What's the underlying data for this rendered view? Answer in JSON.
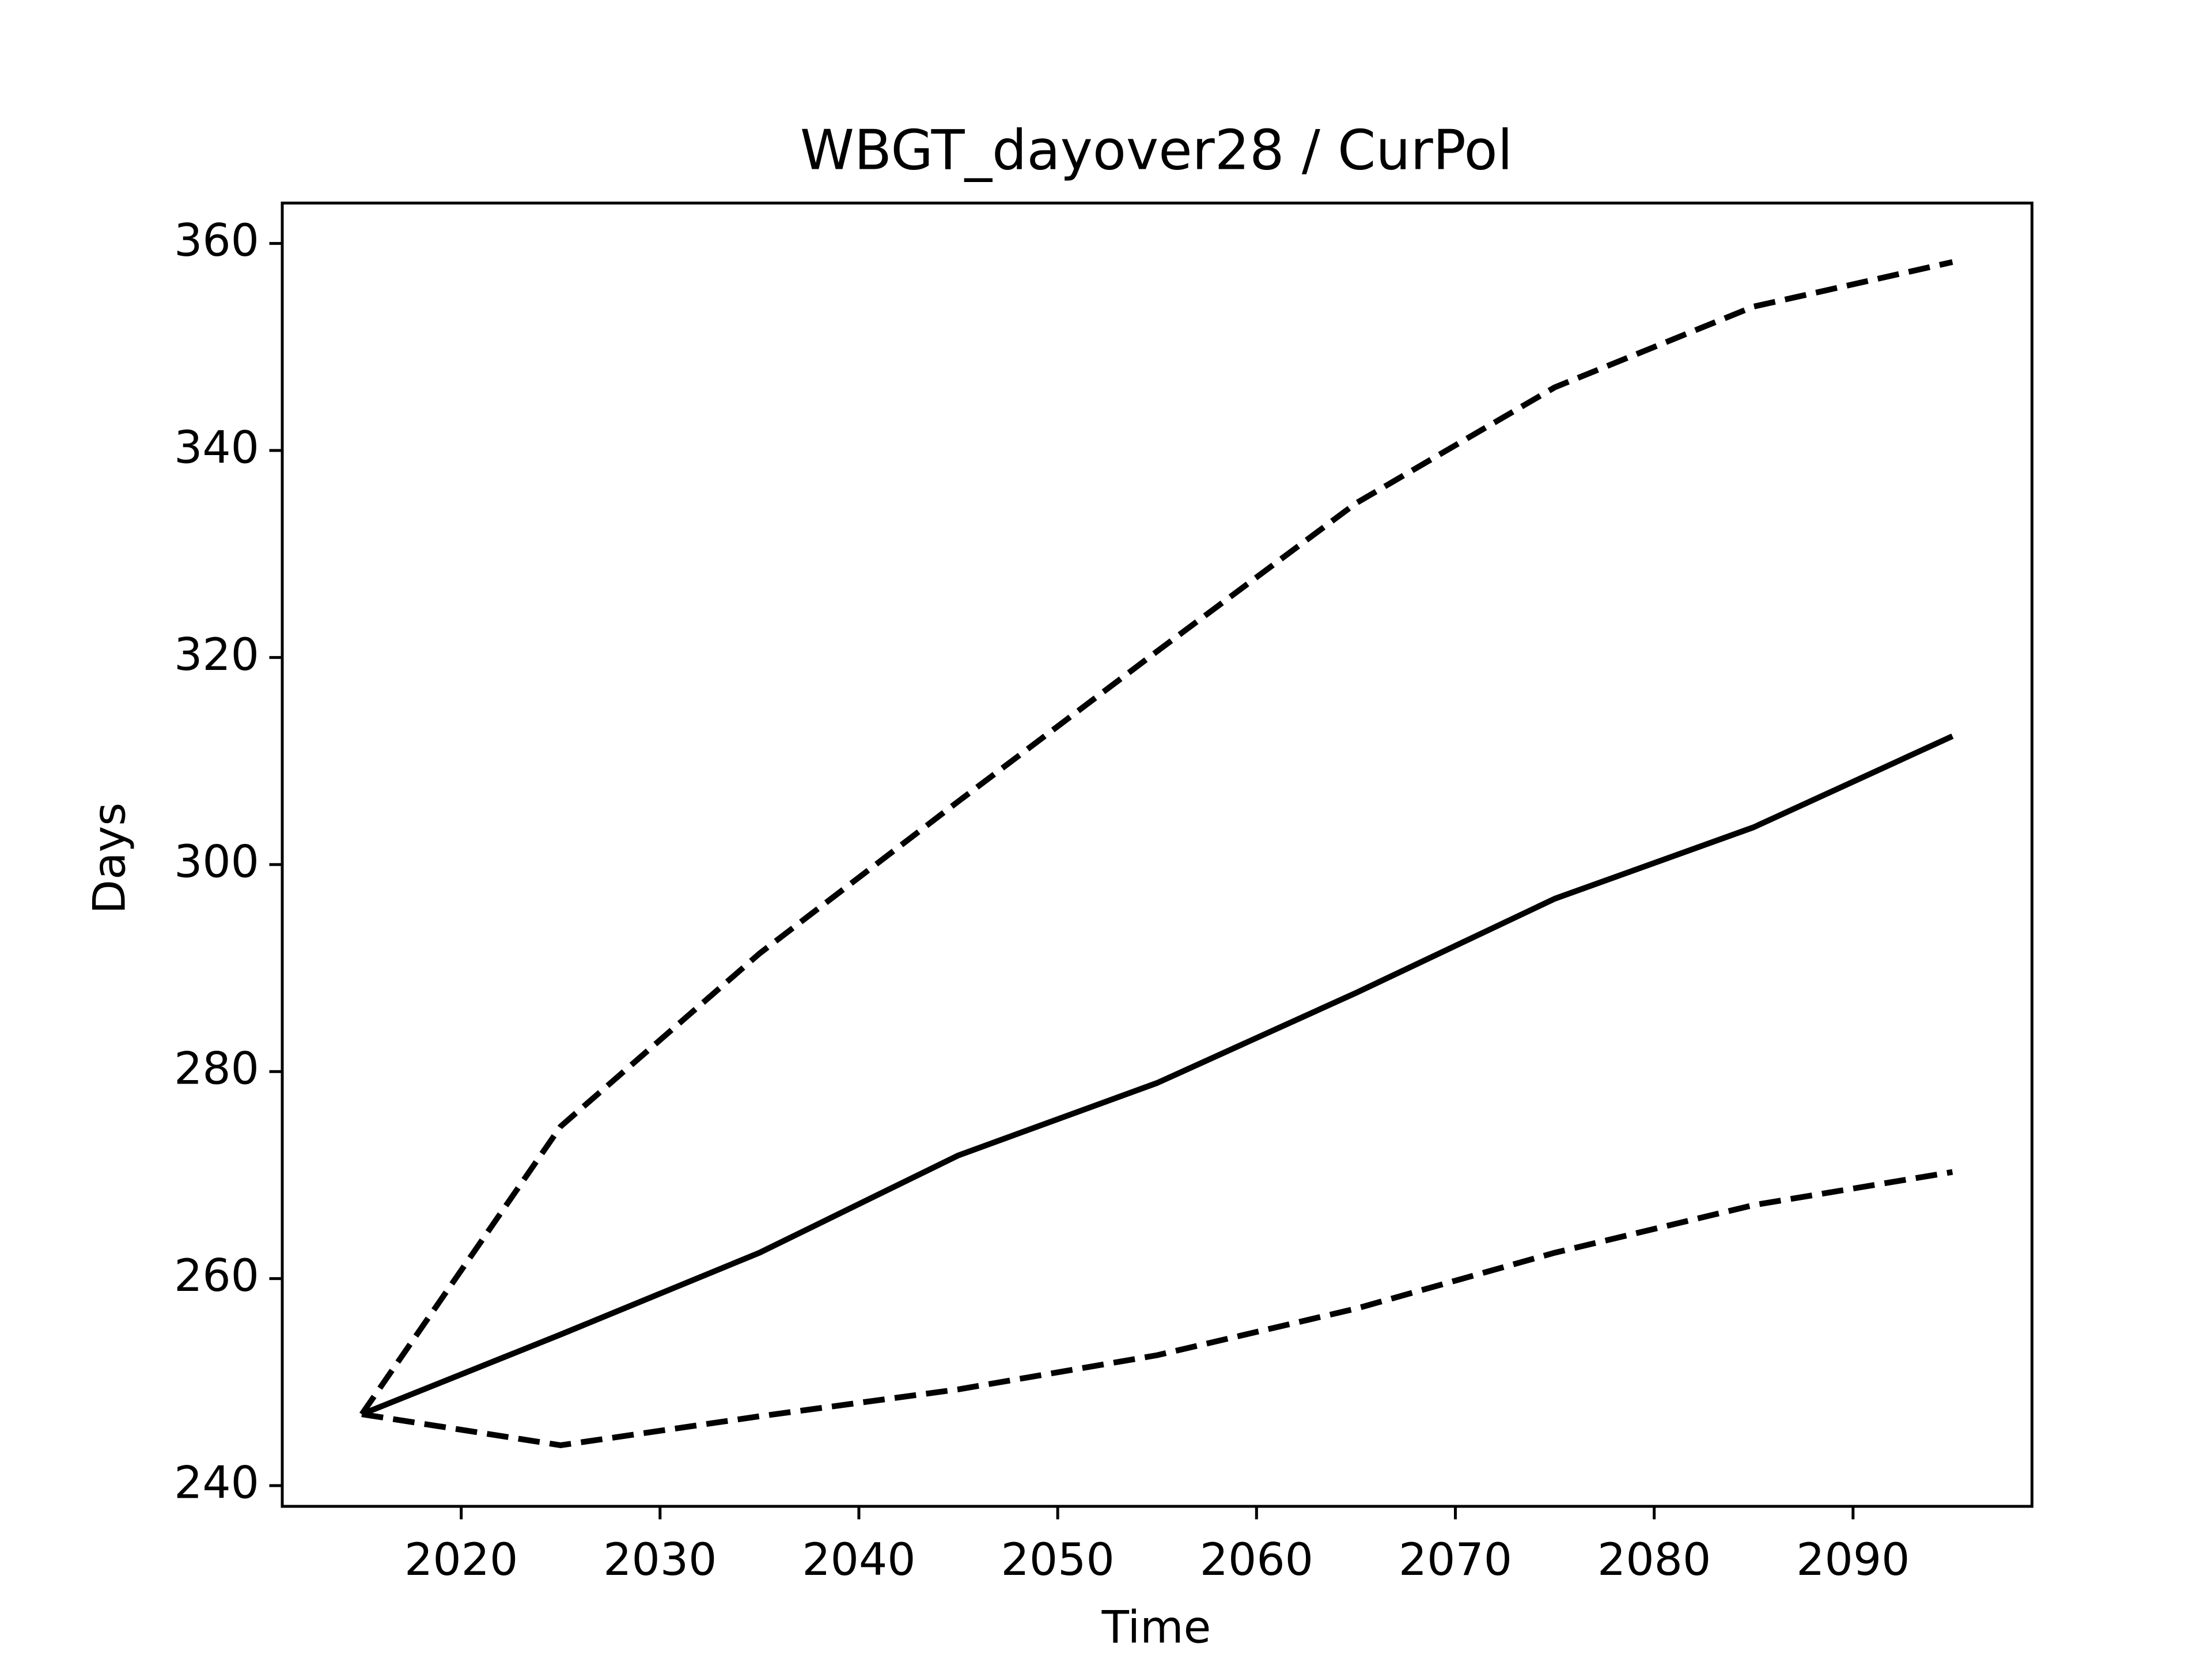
{
  "chart_data": {
    "type": "line",
    "title": "WBGT_dayover28 / CurPol",
    "xlabel": "Time",
    "ylabel": "Days",
    "x": [
      2015,
      2025,
      2035,
      2045,
      2055,
      2065,
      2075,
      2085,
      2095
    ],
    "series": [
      {
        "color": "#000000",
        "linestyle": "solid",
        "values": [
          246.9,
          254.6,
          262.5,
          271.9,
          278.9,
          287.6,
          296.7,
          303.6,
          312.4
        ]
      },
      {
        "color": "#000000",
        "linestyle": "dashed",
        "values": [
          246.9,
          274.7,
          291.4,
          306.1,
          320.6,
          334.9,
          346.1,
          353.9,
          358.2
        ]
      },
      {
        "color": "#000000",
        "linestyle": "dashed",
        "values": [
          246.9,
          243.9,
          246.7,
          249.3,
          252.6,
          257.1,
          262.5,
          267.1,
          270.3
        ]
      }
    ],
    "xlim": [
      2011,
      2099
    ],
    "xticks": [
      2020,
      2030,
      2040,
      2050,
      2060,
      2070,
      2080,
      2090
    ],
    "ylim": [
      238.0,
      363.9
    ],
    "yticks": [
      240,
      260,
      280,
      300,
      320,
      340,
      360
    ],
    "grid": false
  }
}
